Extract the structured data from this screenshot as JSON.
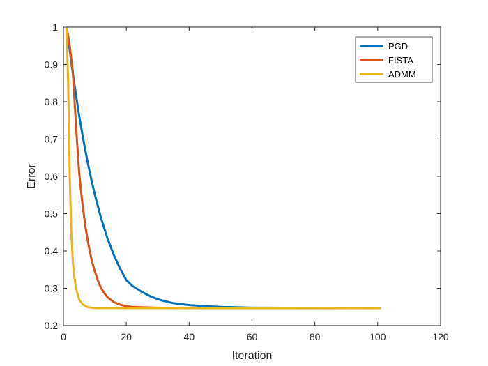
{
  "chart_data": {
    "type": "line",
    "title": "",
    "xlabel": "Iteration",
    "ylabel": "Error",
    "xlim": [
      0,
      120
    ],
    "ylim": [
      0.2,
      1
    ],
    "xticks": [
      0,
      20,
      40,
      60,
      80,
      100,
      120
    ],
    "yticks": [
      0.2,
      0.3,
      0.4,
      0.5,
      0.6,
      0.7,
      0.8,
      0.9,
      1
    ],
    "xtick_labels": [
      "0",
      "20",
      "40",
      "60",
      "80",
      "100",
      "120"
    ],
    "ytick_labels": [
      "0.2",
      "0.3",
      "0.4",
      "0.5",
      "0.6",
      "0.7",
      "0.8",
      "0.9",
      "1"
    ],
    "grid": false,
    "legend_position": "top-right",
    "series": [
      {
        "name": "PGD",
        "color": "#0072BD",
        "x": [
          1,
          2,
          3,
          4,
          5,
          6,
          7,
          8,
          9,
          10,
          12,
          14,
          16,
          18,
          20,
          22,
          25,
          28,
          31,
          35,
          40,
          45,
          50,
          55,
          60,
          70,
          80,
          90,
          101
        ],
        "y": [
          1.0,
          0.938,
          0.875,
          0.818,
          0.763,
          0.714,
          0.668,
          0.626,
          0.587,
          0.551,
          0.487,
          0.434,
          0.39,
          0.353,
          0.322,
          0.306,
          0.29,
          0.277,
          0.268,
          0.26,
          0.255,
          0.252,
          0.25,
          0.249,
          0.248,
          0.2477,
          0.2474,
          0.2472,
          0.247
        ]
      },
      {
        "name": "FISTA",
        "color": "#D95319",
        "x": [
          1,
          2,
          3,
          4,
          5,
          6,
          7,
          8,
          9,
          10,
          11,
          12,
          13,
          14,
          16,
          18,
          20,
          22,
          25,
          30,
          35,
          40,
          50,
          60,
          80,
          101
        ],
        "y": [
          1.0,
          0.95,
          0.88,
          0.735,
          0.61,
          0.53,
          0.465,
          0.415,
          0.375,
          0.345,
          0.32,
          0.3,
          0.287,
          0.276,
          0.263,
          0.256,
          0.252,
          0.25,
          0.249,
          0.248,
          0.2475,
          0.247,
          0.247,
          0.247,
          0.247,
          0.247
        ]
      },
      {
        "name": "ADMM",
        "color": "#EDB120",
        "x": [
          1,
          1.5,
          2,
          2.5,
          3,
          3.5,
          4,
          5,
          6,
          7,
          8,
          9,
          10,
          12,
          15,
          20,
          40,
          60,
          80,
          101
        ],
        "y": [
          1.0,
          0.85,
          0.6,
          0.45,
          0.37,
          0.33,
          0.3,
          0.27,
          0.258,
          0.252,
          0.249,
          0.248,
          0.247,
          0.247,
          0.247,
          0.247,
          0.247,
          0.247,
          0.247,
          0.247
        ]
      }
    ]
  }
}
